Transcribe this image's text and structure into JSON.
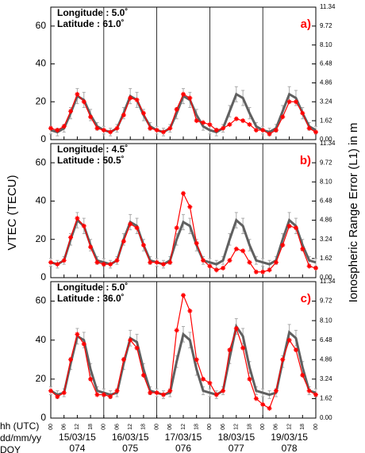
{
  "x_axis": {
    "xlim": [
      0,
      120
    ],
    "xticks": [
      {
        "value": 0,
        "label": "00"
      },
      {
        "value": 6,
        "label": "06"
      },
      {
        "value": 12,
        "label": "12"
      },
      {
        "value": 18,
        "label": "18"
      },
      {
        "value": 24,
        "label": "00"
      },
      {
        "value": 30,
        "label": "06"
      },
      {
        "value": 36,
        "label": "12"
      },
      {
        "value": 42,
        "label": "18"
      },
      {
        "value": 48,
        "label": "00"
      },
      {
        "value": 54,
        "label": "06"
      },
      {
        "value": 60,
        "label": "12"
      },
      {
        "value": 66,
        "label": "18"
      },
      {
        "value": 72,
        "label": "00"
      },
      {
        "value": 78,
        "label": "06"
      },
      {
        "value": 84,
        "label": "12"
      },
      {
        "value": 90,
        "label": "18"
      },
      {
        "value": 96,
        "label": "00"
      },
      {
        "value": 102,
        "label": "06"
      },
      {
        "value": 108,
        "label": "12"
      },
      {
        "value": 114,
        "label": "18"
      },
      {
        "value": 120,
        "label": "00"
      }
    ],
    "row_titles": [
      "hh (UTC)",
      "dd/mm/yy",
      "DOY"
    ],
    "dates": [
      "15/03/15",
      "16/03/15",
      "17/03/15",
      "18/03/15",
      "19/03/15"
    ],
    "doys": [
      "074",
      "075",
      "076",
      "077",
      "078"
    ],
    "ylabel": "VTEC (TECU)",
    "y2label": "Ionospheric Range Error (L1) in m"
  },
  "chart_data": [
    {
      "type": "line",
      "annotations": [
        "Longitude :   5.0˚",
        "Latitude    :  61.0˚"
      ],
      "panel_label": "a)",
      "ylim": [
        0,
        70
      ],
      "yticks": [
        0,
        20,
        40,
        60
      ],
      "y2lim": [
        0,
        11.34
      ],
      "y2ticks": [
        {
          "value": 0,
          "label": "0.00"
        },
        {
          "value": 1.62,
          "label": "1.62"
        },
        {
          "value": 3.24,
          "label": "3.24"
        },
        {
          "value": 4.86,
          "label": "4.86"
        },
        {
          "value": 6.48,
          "label": "6.48"
        },
        {
          "value": 8.1,
          "label": "8.10"
        },
        {
          "value": 9.72,
          "label": "9.72"
        },
        {
          "value": 11.34,
          "label": "11.34"
        }
      ],
      "x": [
        0,
        3,
        6,
        9,
        12,
        15,
        18,
        21,
        24,
        27,
        30,
        33,
        36,
        39,
        42,
        45,
        48,
        51,
        54,
        57,
        60,
        63,
        66,
        69,
        72,
        75,
        78,
        81,
        84,
        87,
        90,
        93,
        96,
        99,
        102,
        105,
        108,
        111,
        114,
        117,
        120
      ],
      "series": [
        {
          "color": "#606060",
          "values": [
            5,
            4,
            6,
            14,
            23,
            21,
            13,
            7,
            5,
            4,
            6,
            14,
            23,
            21,
            13,
            7,
            5,
            4,
            6,
            14,
            23,
            21,
            13,
            7,
            5,
            4,
            6,
            15,
            24,
            22,
            14,
            7,
            5,
            4,
            6,
            15,
            24,
            22,
            14,
            7,
            5
          ],
          "errors": [
            2,
            2,
            2,
            3,
            4,
            4,
            3,
            2,
            2,
            2,
            2,
            3,
            4,
            4,
            3,
            2,
            2,
            2,
            2,
            3,
            4,
            4,
            3,
            2,
            2,
            2,
            2,
            3,
            4,
            4,
            3,
            2,
            2,
            2,
            2,
            3,
            4,
            4,
            3,
            2,
            2
          ]
        },
        {
          "color": "#ff0000",
          "values": [
            6,
            5,
            7,
            15,
            24,
            20,
            12,
            6,
            5,
            4,
            6,
            13,
            22,
            21,
            14,
            6,
            5,
            4,
            6,
            16,
            24,
            22,
            10,
            9,
            8,
            5,
            6,
            8,
            11,
            10,
            8,
            5,
            5,
            3,
            5,
            12,
            20,
            20,
            14,
            6,
            4
          ]
        }
      ]
    },
    {
      "type": "line",
      "annotations": [
        "Longitude :   4.5˚",
        "Latitude    :  50.5˚"
      ],
      "panel_label": "b)",
      "ylim": [
        0,
        70
      ],
      "yticks": [
        0,
        20,
        40,
        60
      ],
      "y2lim": [
        0,
        11.34
      ],
      "y2ticks": [
        {
          "value": 0,
          "label": "0.00"
        },
        {
          "value": 1.62,
          "label": "1.62"
        },
        {
          "value": 3.24,
          "label": "3.24"
        },
        {
          "value": 4.86,
          "label": "4.86"
        },
        {
          "value": 6.48,
          "label": "6.48"
        },
        {
          "value": 8.1,
          "label": "8.10"
        },
        {
          "value": 9.72,
          "label": "9.72"
        },
        {
          "value": 11.34,
          "label": "11.34"
        }
      ],
      "x": [
        0,
        3,
        6,
        9,
        12,
        15,
        18,
        21,
        24,
        27,
        30,
        33,
        36,
        39,
        42,
        45,
        48,
        51,
        54,
        57,
        60,
        63,
        66,
        69,
        72,
        75,
        78,
        81,
        84,
        87,
        90,
        93,
        96,
        99,
        102,
        105,
        108,
        111,
        114,
        117,
        120
      ],
      "series": [
        {
          "color": "#606060",
          "values": [
            8,
            7,
            9,
            20,
            30,
            27,
            17,
            9,
            8,
            7,
            9,
            20,
            29,
            27,
            17,
            9,
            8,
            7,
            9,
            20,
            29,
            27,
            17,
            9,
            8,
            7,
            9,
            20,
            30,
            27,
            17,
            9,
            8,
            7,
            9,
            20,
            30,
            27,
            17,
            9,
            8
          ],
          "errors": [
            2,
            2,
            2,
            3,
            4,
            4,
            3,
            2,
            2,
            2,
            2,
            3,
            4,
            4,
            3,
            2,
            2,
            2,
            2,
            3,
            4,
            4,
            3,
            2,
            2,
            2,
            2,
            3,
            4,
            4,
            3,
            2,
            2,
            2,
            2,
            3,
            4,
            4,
            3,
            2,
            2
          ]
        },
        {
          "color": "#ff0000",
          "values": [
            8,
            7,
            9,
            21,
            31,
            27,
            16,
            8,
            7,
            7,
            9,
            19,
            28,
            26,
            17,
            8,
            8,
            7,
            8,
            26,
            44,
            37,
            18,
            9,
            6,
            4,
            5,
            9,
            15,
            14,
            8,
            3,
            3,
            4,
            8,
            17,
            27,
            26,
            15,
            6,
            5
          ]
        }
      ]
    },
    {
      "type": "line",
      "annotations": [
        "Longitude :   5.0˚",
        "Latitude    :  36.0˚"
      ],
      "panel_label": "c)",
      "ylim": [
        0,
        70
      ],
      "yticks": [
        0,
        20,
        40,
        60
      ],
      "y2lim": [
        0,
        11.34
      ],
      "y2ticks": [
        {
          "value": 0,
          "label": "0.00"
        },
        {
          "value": 1.62,
          "label": "1.62"
        },
        {
          "value": 3.24,
          "label": "3.24"
        },
        {
          "value": 4.86,
          "label": "4.86"
        },
        {
          "value": 6.48,
          "label": "6.48"
        },
        {
          "value": 8.1,
          "label": "8.10"
        },
        {
          "value": 9.72,
          "label": "9.72"
        },
        {
          "value": 11.34,
          "label": "11.34"
        }
      ],
      "x": [
        0,
        3,
        6,
        9,
        12,
        15,
        18,
        21,
        24,
        27,
        30,
        33,
        36,
        39,
        42,
        45,
        48,
        51,
        54,
        57,
        60,
        63,
        66,
        69,
        72,
        75,
        78,
        81,
        84,
        87,
        90,
        93,
        96,
        99,
        102,
        105,
        108,
        111,
        114,
        117,
        120
      ],
      "series": [
        {
          "color": "#606060",
          "values": [
            14,
            12,
            13,
            28,
            42,
            40,
            25,
            14,
            13,
            12,
            13,
            28,
            41,
            39,
            25,
            14,
            13,
            12,
            13,
            29,
            43,
            40,
            25,
            14,
            13,
            12,
            14,
            31,
            47,
            42,
            26,
            14,
            13,
            12,
            13,
            29,
            44,
            41,
            26,
            14,
            13
          ],
          "errors": [
            2,
            2,
            2,
            3,
            4,
            4,
            3,
            2,
            2,
            2,
            2,
            3,
            4,
            4,
            3,
            2,
            2,
            2,
            2,
            3,
            4,
            4,
            3,
            2,
            2,
            2,
            2,
            3,
            4,
            4,
            3,
            2,
            2,
            2,
            2,
            3,
            4,
            4,
            3,
            2,
            2
          ]
        },
        {
          "color": "#ff0000",
          "values": [
            14,
            11,
            13,
            30,
            43,
            38,
            20,
            12,
            12,
            11,
            14,
            30,
            40,
            36,
            22,
            13,
            13,
            12,
            14,
            45,
            63,
            55,
            30,
            20,
            18,
            12,
            14,
            35,
            46,
            36,
            20,
            10,
            7,
            5,
            14,
            30,
            40,
            35,
            22,
            14,
            12
          ]
        }
      ]
    }
  ]
}
